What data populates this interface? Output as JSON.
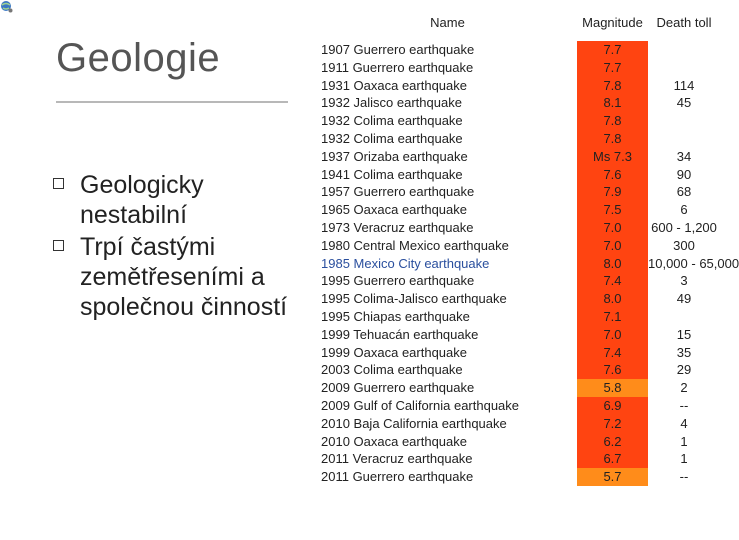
{
  "slide": {
    "title": "Geologie",
    "bullets": [
      "Geologicky nestabilní",
      "Trpí častými zemětřeseními a společnou činností"
    ]
  },
  "table": {
    "headers": {
      "name": "Name",
      "magnitude": "Magnitude",
      "death": "Death toll"
    },
    "rows": [
      {
        "name": "1907 Guerrero earthquake",
        "magnitude": "7.7",
        "death": "",
        "color": "#ff4411"
      },
      {
        "name": "1911 Guerrero earthquake",
        "magnitude": "7.7",
        "death": "",
        "color": "#ff4411"
      },
      {
        "name": "1931 Oaxaca earthquake",
        "magnitude": "7.8",
        "death": "114",
        "color": "#ff4411"
      },
      {
        "name": "1932 Jalisco earthquake",
        "magnitude": "8.1",
        "death": "45",
        "color": "#ff4411"
      },
      {
        "name": "1932 Colima earthquake",
        "magnitude": "7.8",
        "death": "",
        "color": "#ff4411"
      },
      {
        "name": "1932 Colima earthquake",
        "magnitude": "7.8",
        "death": "",
        "color": "#ff4411"
      },
      {
        "name": "1937 Orizaba earthquake",
        "magnitude": "Ms 7.3",
        "death": "34",
        "color": "#ff4411"
      },
      {
        "name": "1941 Colima earthquake",
        "magnitude": "7.6",
        "death": "90",
        "color": "#ff4411"
      },
      {
        "name": "1957 Guerrero earthquake",
        "magnitude": "7.9",
        "death": "68",
        "color": "#ff4411"
      },
      {
        "name": "1965 Oaxaca earthquake",
        "magnitude": "7.5",
        "death": "6",
        "color": "#ff4411"
      },
      {
        "name": "1973 Veracruz earthquake",
        "magnitude": "7.0",
        "death": "600 - 1,200",
        "color": "#ff4411",
        "tall": true
      },
      {
        "name": "1980 Central Mexico earthquake",
        "magnitude": "7.0",
        "death": "300",
        "color": "#ff4411"
      },
      {
        "name": "1985 Mexico City earthquake",
        "magnitude": "8.0",
        "death": "10,000 - 65,000",
        "color": "#ff4411",
        "tall": true,
        "blue": true
      },
      {
        "name": "1995 Guerrero earthquake",
        "magnitude": "7.4",
        "death": "3",
        "color": "#ff4411"
      },
      {
        "name": "1995 Colima-Jalisco earthquake",
        "magnitude": "8.0",
        "death": "49",
        "color": "#ff4411"
      },
      {
        "name": "1995 Chiapas earthquake",
        "magnitude": "7.1",
        "death": "",
        "color": "#ff4411"
      },
      {
        "name": "1999 Tehuacán earthquake",
        "magnitude": "7.0",
        "death": "15",
        "color": "#ff4411"
      },
      {
        "name": "1999 Oaxaca earthquake",
        "magnitude": "7.4",
        "death": "35",
        "color": "#ff4411"
      },
      {
        "name": "2003 Colima earthquake",
        "magnitude": "7.6",
        "death": "29",
        "color": "#ff4411"
      },
      {
        "name": "2009 Guerrero earthquake",
        "magnitude": "5.8",
        "death": "2",
        "color": "#ff8c1a"
      },
      {
        "name": "2009 Gulf of California earthquake",
        "magnitude": "6.9",
        "death": "--",
        "color": "#ff4411"
      },
      {
        "name": "2010 Baja California earthquake",
        "magnitude": "7.2",
        "death": "4",
        "color": "#ff4411"
      },
      {
        "name": "2010 Oaxaca earthquake",
        "magnitude": "6.2",
        "death": "1",
        "color": "#ff4411"
      },
      {
        "name": "2011 Veracruz earthquake",
        "magnitude": "6.7",
        "death": "1",
        "color": "#ff4411"
      },
      {
        "name": "2011 Guerrero earthquake",
        "magnitude": "5.7",
        "death": "--",
        "color": "#ff8c1a"
      }
    ]
  }
}
